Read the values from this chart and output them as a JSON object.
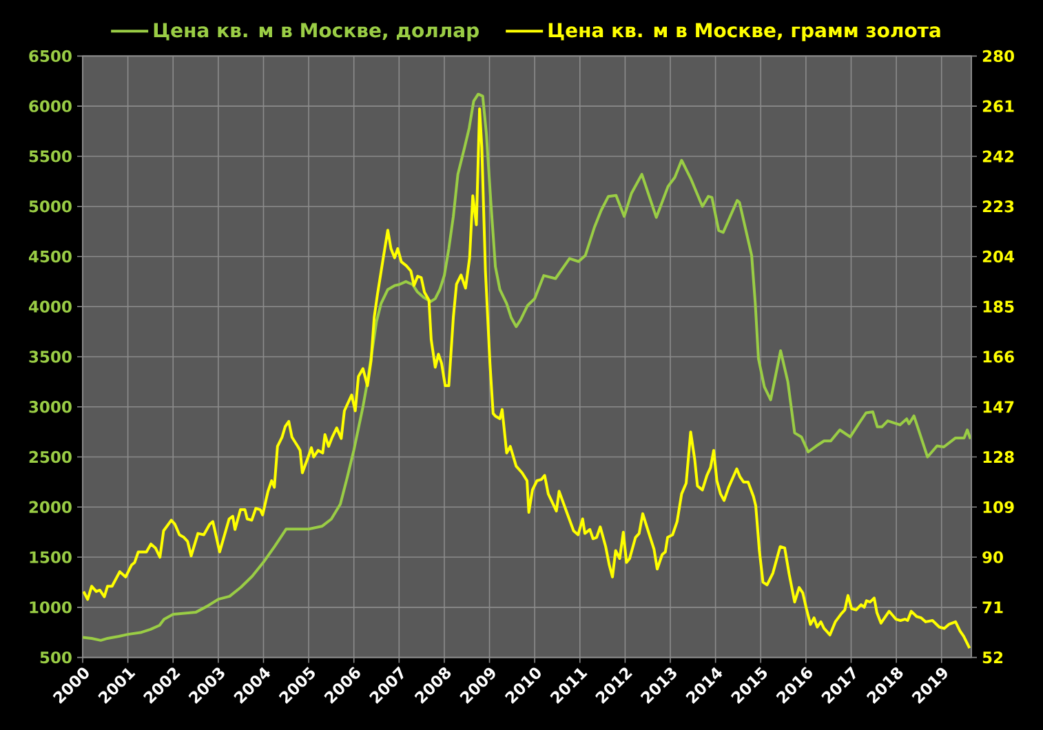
{
  "chart_data": {
    "type": "line",
    "series": [
      {
        "name": "Цена кв. м в Москве, доллар",
        "color": "#9acd45",
        "x": [
          2000.0,
          2000.2,
          2000.4,
          2000.55,
          2000.8,
          2001.0,
          2001.3,
          2001.5,
          2001.7,
          2001.8,
          2002.0,
          2002.5,
          2002.75,
          2003.0,
          2003.25,
          2003.5,
          2003.75,
          2004.0,
          2004.25,
          2004.5,
          2004.75,
          2005.0,
          2005.3,
          2005.5,
          2005.7,
          2005.85,
          2006.0,
          2006.2,
          2006.3,
          2006.4,
          2006.5,
          2006.6,
          2006.75,
          2006.9,
          2007.0,
          2007.15,
          2007.3,
          2007.4,
          2007.55,
          2007.7,
          2007.8,
          2007.9,
          2008.0,
          2008.1,
          2008.2,
          2008.3,
          2008.45,
          2008.55,
          2008.65,
          2008.75,
          2008.85,
          2008.93,
          2009.03,
          2009.13,
          2009.23,
          2009.38,
          2009.48,
          2009.59,
          2009.69,
          2009.84,
          2010.0,
          2010.2,
          2010.46,
          2010.77,
          2010.97,
          2011.12,
          2011.32,
          2011.47,
          2011.63,
          2011.8,
          2011.98,
          2012.14,
          2012.37,
          2012.69,
          2012.95,
          2013.1,
          2013.25,
          2013.46,
          2013.71,
          2013.84,
          2013.92,
          2014.07,
          2014.17,
          2014.48,
          2014.53,
          2014.8,
          2014.88,
          2014.95,
          2015.08,
          2015.22,
          2015.44,
          2015.6,
          2015.75,
          2015.9,
          2016.05,
          2016.23,
          2016.4,
          2016.55,
          2016.75,
          2016.98,
          2017.18,
          2017.33,
          2017.48,
          2017.58,
          2017.68,
          2017.81,
          2018.08,
          2018.23,
          2018.28,
          2018.39,
          2018.69,
          2018.9,
          2019.05,
          2019.31,
          2019.5,
          2019.57,
          2019.64
        ],
        "values": [
          700,
          690,
          670,
          690,
          710,
          730,
          750,
          780,
          820,
          880,
          930,
          950,
          1010,
          1080,
          1110,
          1200,
          1310,
          1450,
          1610,
          1780,
          1780,
          1780,
          1810,
          1880,
          2030,
          2290,
          2570,
          3000,
          3250,
          3550,
          3850,
          4030,
          4170,
          4210,
          4220,
          4250,
          4220,
          4150,
          4090,
          4050,
          4080,
          4170,
          4310,
          4580,
          4900,
          5320,
          5590,
          5780,
          6050,
          6120,
          6100,
          5730,
          5040,
          4400,
          4170,
          4030,
          3890,
          3800,
          3870,
          4010,
          4080,
          4310,
          4280,
          4480,
          4450,
          4510,
          4790,
          4960,
          5100,
          5110,
          4900,
          5130,
          5320,
          4890,
          5200,
          5290,
          5460,
          5270,
          5000,
          5100,
          5090,
          4760,
          4740,
          5060,
          5040,
          4510,
          4030,
          3480,
          3200,
          3070,
          3560,
          3250,
          2740,
          2700,
          2550,
          2610,
          2660,
          2660,
          2770,
          2700,
          2840,
          2940,
          2950,
          2800,
          2800,
          2860,
          2820,
          2880,
          2830,
          2910,
          2500,
          2610,
          2600,
          2690,
          2690,
          2770,
          2680
        ]
      },
      {
        "name": "Цена кв. м в Москве, грамм золота",
        "color": "#ffff00",
        "axis": "y2",
        "x": [
          2000.02,
          2000.11,
          2000.2,
          2000.3,
          2000.38,
          2000.48,
          2000.55,
          2000.65,
          2000.82,
          2000.95,
          2001.08,
          2001.15,
          2001.23,
          2001.41,
          2001.51,
          2001.61,
          2001.71,
          2001.79,
          2001.96,
          2002.04,
          2002.14,
          2002.24,
          2002.32,
          2002.4,
          2002.55,
          2002.68,
          2002.81,
          2002.88,
          2003.03,
          2003.24,
          2003.32,
          2003.37,
          2003.49,
          2003.59,
          2003.64,
          2003.74,
          2003.83,
          2003.93,
          2003.98,
          2004.1,
          2004.18,
          2004.24,
          2004.31,
          2004.41,
          2004.48,
          2004.56,
          2004.63,
          2004.76,
          2004.81,
          2004.86,
          2005.01,
          2005.06,
          2005.11,
          2005.21,
          2005.31,
          2005.36,
          2005.44,
          2005.52,
          2005.62,
          2005.72,
          2005.79,
          2005.95,
          2006.03,
          2006.1,
          2006.2,
          2006.3,
          2006.38,
          2006.45,
          2006.52,
          2006.65,
          2006.75,
          2006.82,
          2006.9,
          2006.97,
          2007.05,
          2007.16,
          2007.26,
          2007.33,
          2007.41,
          2007.49,
          2007.56,
          2007.66,
          2007.71,
          2007.8,
          2007.87,
          2007.94,
          2008.02,
          2008.1,
          2008.2,
          2008.27,
          2008.37,
          2008.47,
          2008.56,
          2008.63,
          2008.71,
          2008.78,
          2008.83,
          2008.91,
          2009.01,
          2009.08,
          2009.13,
          2009.23,
          2009.28,
          2009.38,
          2009.46,
          2009.59,
          2009.72,
          2009.83,
          2009.87,
          2009.95,
          2010.05,
          2010.15,
          2010.22,
          2010.3,
          2010.48,
          2010.54,
          2010.71,
          2010.86,
          2010.96,
          2011.06,
          2011.11,
          2011.22,
          2011.29,
          2011.37,
          2011.45,
          2011.57,
          2011.65,
          2011.72,
          2011.79,
          2011.88,
          2011.96,
          2012.03,
          2012.1,
          2012.23,
          2012.31,
          2012.39,
          2012.49,
          2012.64,
          2012.71,
          2012.82,
          2012.89,
          2012.94,
          2013.05,
          2013.15,
          2013.25,
          2013.35,
          2013.45,
          2013.54,
          2013.6,
          2013.71,
          2013.81,
          2013.89,
          2013.96,
          2014.03,
          2014.11,
          2014.19,
          2014.29,
          2014.47,
          2014.54,
          2014.62,
          2014.72,
          2014.84,
          2014.89,
          2014.97,
          2015.05,
          2015.14,
          2015.27,
          2015.43,
          2015.53,
          2015.63,
          2015.75,
          2015.85,
          2015.93,
          2016.01,
          2016.1,
          2016.18,
          2016.25,
          2016.33,
          2016.4,
          2016.48,
          2016.53,
          2016.65,
          2016.78,
          2016.86,
          2016.93,
          2017.01,
          2017.11,
          2017.22,
          2017.29,
          2017.34,
          2017.42,
          2017.51,
          2017.57,
          2017.66,
          2017.74,
          2017.84,
          2017.99,
          2018.09,
          2018.19,
          2018.25,
          2018.33,
          2018.45,
          2018.55,
          2018.65,
          2018.8,
          2018.95,
          2019.06,
          2019.16,
          2019.31,
          2019.41,
          2019.49,
          2019.62
        ],
        "values": [
          77,
          74,
          79,
          77,
          77.5,
          75,
          79,
          79,
          84.5,
          82.5,
          87,
          88,
          92,
          92,
          95,
          93.5,
          90,
          100,
          104,
          102.5,
          98.5,
          97.5,
          96,
          90.5,
          99,
          98.5,
          102.5,
          103.5,
          92,
          104.5,
          105.5,
          100.5,
          108,
          108,
          104.5,
          104,
          108.5,
          108,
          106,
          115,
          119,
          116.5,
          132,
          135.5,
          139.5,
          141.5,
          135.5,
          132,
          130.5,
          122,
          129,
          131.5,
          128,
          130.5,
          129.5,
          136.5,
          132,
          135.5,
          139,
          135,
          145.5,
          151.5,
          145.5,
          158.5,
          161.5,
          155,
          164.5,
          181,
          189.5,
          203.5,
          214,
          207,
          203.5,
          207,
          202,
          200.5,
          198.5,
          193,
          196.5,
          196,
          190.5,
          187.5,
          172.5,
          162,
          167,
          163.5,
          155,
          155,
          181,
          193.5,
          197,
          192,
          203.5,
          227,
          216,
          260,
          245.5,
          198.5,
          163.5,
          144.5,
          143.5,
          142.5,
          146,
          129.5,
          132,
          124.5,
          122,
          119,
          107,
          115.5,
          119,
          119.5,
          121,
          114,
          107.5,
          115,
          107,
          100,
          98.5,
          104.5,
          99,
          100.5,
          97,
          97.5,
          101.5,
          94,
          87,
          82.5,
          92.5,
          89.5,
          99.5,
          88,
          89.5,
          97.5,
          99,
          106.5,
          101,
          93,
          85.5,
          91,
          92,
          97.5,
          98.5,
          103.5,
          114,
          118,
          137.5,
          127,
          117,
          115.5,
          121,
          124,
          130.5,
          119,
          114,
          111.5,
          116.5,
          123.5,
          120.5,
          118.5,
          118.5,
          113,
          109.5,
          92.5,
          80.5,
          79.5,
          84,
          94,
          93.5,
          83.5,
          73,
          78.5,
          76.5,
          70.5,
          64.5,
          67,
          63.5,
          65.5,
          63,
          61.5,
          60.5,
          65.5,
          68.5,
          70,
          75.5,
          70.5,
          70,
          72,
          71,
          73.5,
          73,
          74.5,
          69,
          65,
          67,
          69.5,
          66.5,
          66,
          66.5,
          66,
          69.5,
          67.5,
          67,
          65.5,
          66,
          63.5,
          63,
          64.5,
          65.5,
          62,
          60,
          55.5
        ]
      }
    ],
    "xlim": [
      2000,
      2019.66
    ],
    "xticks": [
      2000,
      2001,
      2002,
      2003,
      2004,
      2005,
      2006,
      2007,
      2008,
      2009,
      2010,
      2011,
      2012,
      2013,
      2014,
      2015,
      2016,
      2017,
      2018,
      2019
    ],
    "ylim": [
      500,
      6500
    ],
    "yticks": [
      500,
      1000,
      1500,
      2000,
      2500,
      3000,
      3500,
      4000,
      4500,
      5000,
      5500,
      6000,
      6500
    ],
    "y2lim": [
      52,
      280
    ],
    "y2ticks": [
      52,
      71,
      90,
      109,
      128,
      147,
      166,
      185,
      204,
      223,
      242,
      261,
      280
    ],
    "grid": true,
    "legend": "top"
  }
}
